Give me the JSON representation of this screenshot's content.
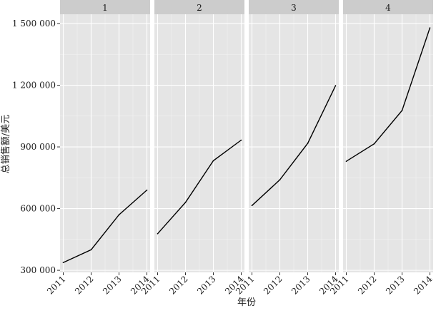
{
  "chart_data": {
    "type": "line",
    "facet_variable_values": [
      "1",
      "2",
      "3",
      "4"
    ],
    "xlabel": "年份",
    "ylabel": "总销售额/美元",
    "x_categories": [
      "2011",
      "2012",
      "2013",
      "2014"
    ],
    "ylim": [
      290000,
      1545000
    ],
    "y_ticks": [
      300000,
      600000,
      900000,
      1200000,
      1500000
    ],
    "y_tick_labels": [
      "300 000",
      "600 000",
      "900 000",
      "1 200 000",
      "1 500 000"
    ],
    "grid": true,
    "panels": [
      {
        "facet": "1",
        "values": [
          338000,
          400000,
          570000,
          690000
        ]
      },
      {
        "facet": "2",
        "values": [
          478000,
          630000,
          833000,
          933000
        ]
      },
      {
        "facet": "3",
        "values": [
          615000,
          740000,
          917000,
          1198000
        ]
      },
      {
        "facet": "4",
        "values": [
          830000,
          915000,
          1077000,
          1479000
        ]
      }
    ],
    "colors": {
      "panel_background": "#e5e5e5",
      "grid_major": "#ffffff",
      "strip_background": "#cccccc",
      "line": "#000000"
    }
  }
}
